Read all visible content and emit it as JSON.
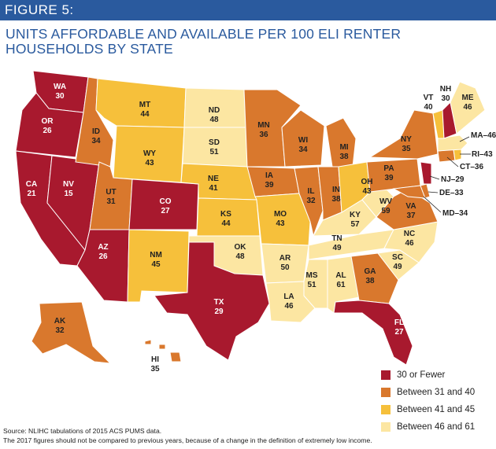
{
  "figure_label": "FIGURE 5:",
  "title": "UNITS AFFORDABLE AND AVAILABLE PER 100 ELI RENTER HOUSEHOLDS BY STATE",
  "colors": {
    "banner": "#2a5a9e",
    "tier1": "#a8192e",
    "tier2": "#d9782d",
    "tier3": "#f6c03b",
    "tier4": "#fce6a2"
  },
  "legend": [
    {
      "label": "30 or Fewer",
      "color": "#a8192e"
    },
    {
      "label": "Between 31 and 40",
      "color": "#d9782d"
    },
    {
      "label": "Between 41 and 45",
      "color": "#f6c03b"
    },
    {
      "label": "Between 46 and 61",
      "color": "#fce6a2"
    }
  ],
  "states": [
    {
      "abbr": "WA",
      "value": "30"
    },
    {
      "abbr": "OR",
      "value": "26"
    },
    {
      "abbr": "CA",
      "value": "21"
    },
    {
      "abbr": "NV",
      "value": "15"
    },
    {
      "abbr": "ID",
      "value": "34"
    },
    {
      "abbr": "MT",
      "value": "44"
    },
    {
      "abbr": "WY",
      "value": "43"
    },
    {
      "abbr": "UT",
      "value": "31"
    },
    {
      "abbr": "CO",
      "value": "27"
    },
    {
      "abbr": "AZ",
      "value": "26"
    },
    {
      "abbr": "NM",
      "value": "45"
    },
    {
      "abbr": "ND",
      "value": "48"
    },
    {
      "abbr": "SD",
      "value": "51"
    },
    {
      "abbr": "NE",
      "value": "41"
    },
    {
      "abbr": "KS",
      "value": "44"
    },
    {
      "abbr": "OK",
      "value": "48"
    },
    {
      "abbr": "TX",
      "value": "29"
    },
    {
      "abbr": "MN",
      "value": "36"
    },
    {
      "abbr": "IA",
      "value": "39"
    },
    {
      "abbr": "MO",
      "value": "43"
    },
    {
      "abbr": "AR",
      "value": "50"
    },
    {
      "abbr": "LA",
      "value": "46"
    },
    {
      "abbr": "WI",
      "value": "34"
    },
    {
      "abbr": "IL",
      "value": "32"
    },
    {
      "abbr": "MS",
      "value": "51"
    },
    {
      "abbr": "MI",
      "value": "38"
    },
    {
      "abbr": "IN",
      "value": "38"
    },
    {
      "abbr": "KY",
      "value": "57"
    },
    {
      "abbr": "TN",
      "value": "49"
    },
    {
      "abbr": "AL",
      "value": "61"
    },
    {
      "abbr": "OH",
      "value": "43"
    },
    {
      "abbr": "WV",
      "value": "59"
    },
    {
      "abbr": "GA",
      "value": "38"
    },
    {
      "abbr": "FL",
      "value": "27"
    },
    {
      "abbr": "SC",
      "value": "49"
    },
    {
      "abbr": "NC",
      "value": "46"
    },
    {
      "abbr": "VA",
      "value": "37"
    },
    {
      "abbr": "PA",
      "value": "39"
    },
    {
      "abbr": "NY",
      "value": "35"
    },
    {
      "abbr": "VT",
      "value": "40"
    },
    {
      "abbr": "NH",
      "value": "30"
    },
    {
      "abbr": "ME",
      "value": "46"
    },
    {
      "abbr": "AK",
      "value": "32"
    },
    {
      "abbr": "HI",
      "value": "35"
    }
  ],
  "callouts": [
    {
      "text": "MA–46"
    },
    {
      "text": "RI–43"
    },
    {
      "text": "CT–36"
    },
    {
      "text": "NJ–29"
    },
    {
      "text": "DE–33"
    },
    {
      "text": "MD–34"
    }
  ],
  "source": "Source: NLIHC tabulations of 2015 ACS PUMS data.",
  "note": "The 2017 figures should not be compared to previous years, because of a change in the definition of extremely low income."
}
